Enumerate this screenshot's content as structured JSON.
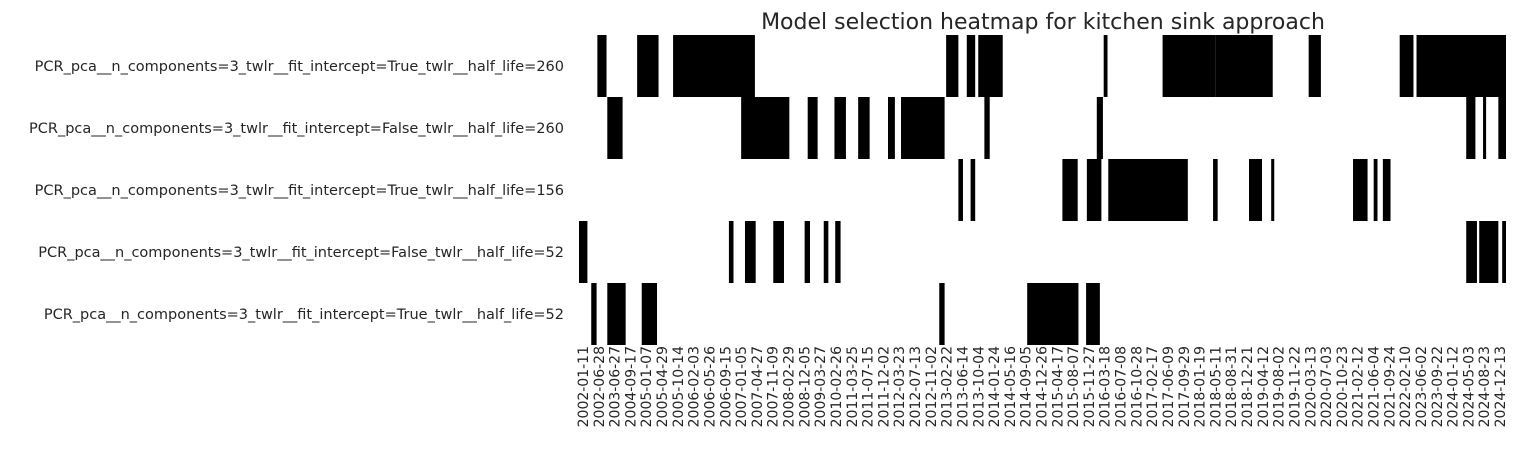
{
  "chart_data": {
    "type": "heatmap",
    "title": "Model selection heatmap for kitchen sink approach",
    "xlabel": "",
    "ylabel": "",
    "rows": [
      "PCR_pca__n_components=3_twlr__fit_intercept=True_twlr__half_life=260",
      "PCR_pca__n_components=3_twlr__fit_intercept=False_twlr__half_life=260",
      "PCR_pca__n_components=3_twlr__fit_intercept=True_twlr__half_life=156",
      "PCR_pca__n_components=3_twlr__fit_intercept=False_twlr__half_life=52",
      "PCR_pca__n_components=3_twlr__fit_intercept=True_twlr__half_life=52"
    ],
    "x_tick_labels": [
      "2002-01-11",
      "2002-06-28",
      "2003-06-27",
      "2004-09-17",
      "2005-01-07",
      "2005-04-29",
      "2005-10-14",
      "2006-02-03",
      "2006-05-26",
      "2006-09-15",
      "2007-01-05",
      "2007-04-27",
      "2007-11-09",
      "2008-02-29",
      "2008-12-05",
      "2009-03-27",
      "2010-02-26",
      "2011-03-25",
      "2011-07-15",
      "2011-12-02",
      "2012-03-23",
      "2012-07-13",
      "2012-11-02",
      "2013-02-22",
      "2013-06-14",
      "2013-10-04",
      "2014-01-24",
      "2014-05-16",
      "2014-09-05",
      "2014-12-26",
      "2015-04-17",
      "2015-08-07",
      "2015-11-27",
      "2016-03-18",
      "2016-07-08",
      "2016-10-28",
      "2017-02-17",
      "2017-06-09",
      "2017-09-29",
      "2018-01-19",
      "2018-05-11",
      "2018-08-31",
      "2018-12-21",
      "2019-04-12",
      "2019-08-02",
      "2019-11-22",
      "2020-03-13",
      "2020-07-03",
      "2020-10-23",
      "2021-02-12",
      "2021-06-04",
      "2021-09-24",
      "2022-02-10",
      "2023-06-02",
      "2023-09-22",
      "2024-01-12",
      "2024-05-03",
      "2024-08-23",
      "2024-12-13"
    ],
    "x_start": "2002-01-11",
    "x_end": "2025-04-04",
    "value_legend": "black = selected, white = not selected",
    "colors": {
      "selected": "#000000",
      "unselected": "#ffffff"
    },
    "selected_periods": [
      [
        [
          "2002-06-28",
          "2002-09-20"
        ],
        [
          "2003-06-27",
          "2004-01-09"
        ],
        [
          "2004-05-21",
          "2006-06-09"
        ],
        [
          "2011-03-25",
          "2011-07-15"
        ],
        [
          "2011-09-30",
          "2011-12-16"
        ],
        [
          "2012-01-13",
          "2012-08-24"
        ],
        [
          "2015-03-06",
          "2015-04-10"
        ],
        [
          "2016-08-26",
          "2017-12-22"
        ],
        [
          "2017-12-22",
          "2019-05-31"
        ],
        [
          "2020-04-24",
          "2020-08-14"
        ],
        [
          "2022-08-05",
          "2022-12-09"
        ],
        [
          "2023-01-06",
          "2025-04-04"
        ]
      ],
      [
        [
          "2002-09-27",
          "2003-02-14"
        ],
        [
          "2006-02-03",
          "2007-04-20"
        ],
        [
          "2007-10-05",
          "2008-01-04"
        ],
        [
          "2008-06-06",
          "2008-09-19"
        ],
        [
          "2009-01-09",
          "2009-04-24"
        ],
        [
          "2009-10-09",
          "2009-12-11"
        ],
        [
          "2010-02-05",
          "2011-03-11"
        ],
        [
          "2012-03-09",
          "2012-04-27"
        ],
        [
          "2015-01-02",
          "2015-02-27"
        ],
        [
          "2024-04-05",
          "2024-06-28"
        ],
        [
          "2024-09-06",
          "2024-10-04"
        ],
        [
          "2025-01-24",
          "2025-04-04"
        ]
      ],
      [
        [
          "2011-07-15",
          "2011-08-26"
        ],
        [
          "2011-11-04",
          "2011-12-16"
        ],
        [
          "2014-02-21",
          "2014-07-11"
        ],
        [
          "2014-10-03",
          "2015-02-13"
        ],
        [
          "2015-04-17",
          "2017-04-14"
        ],
        [
          "2017-12-01",
          "2018-01-12"
        ],
        [
          "2018-10-26",
          "2019-02-22"
        ],
        [
          "2019-05-17",
          "2019-06-14"
        ],
        [
          "2021-06-04",
          "2021-10-15"
        ],
        [
          "2021-12-10",
          "2022-01-14"
        ],
        [
          "2022-03-04",
          "2022-05-13"
        ]
      ],
      [
        [
          "2002-01-11",
          "2002-03-29"
        ],
        [
          "2005-10-14",
          "2005-11-25"
        ],
        [
          "2006-03-10",
          "2006-06-16"
        ],
        [
          "2006-11-24",
          "2007-03-02"
        ],
        [
          "2007-09-07",
          "2007-10-26"
        ],
        [
          "2008-02-29",
          "2008-04-11"
        ],
        [
          "2008-06-13",
          "2008-08-01"
        ],
        [
          "2024-04-05",
          "2024-07-12"
        ],
        [
          "2024-08-02",
          "2025-01-24"
        ],
        [
          "2025-02-28",
          "2025-04-04"
        ]
      ],
      [
        [
          "2002-05-03",
          "2002-06-21"
        ],
        [
          "2002-09-27",
          "2003-03-14"
        ],
        [
          "2003-08-08",
          "2003-12-26"
        ],
        [
          "2011-01-21",
          "2011-03-11"
        ],
        [
          "2013-04-05",
          "2014-07-18"
        ],
        [
          "2014-09-26",
          "2015-01-30"
        ]
      ]
    ]
  }
}
